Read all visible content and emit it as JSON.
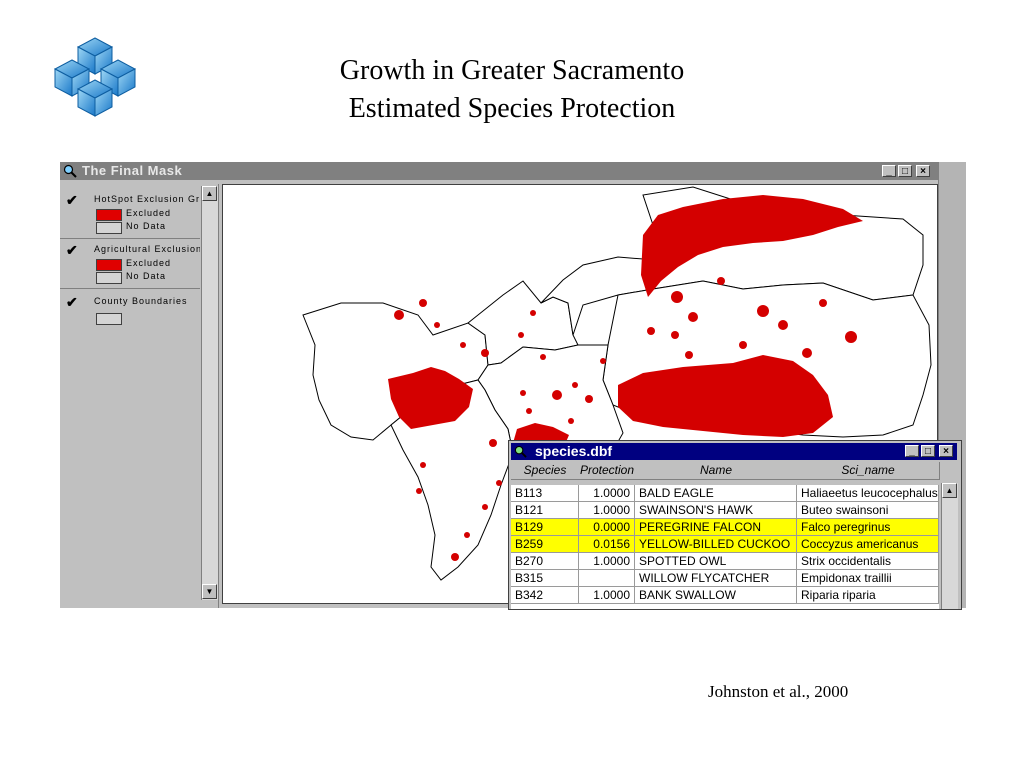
{
  "slide": {
    "title_line1": "Growth in Greater Sacramento",
    "title_line2": "Estimated Species Protection",
    "citation": "Johnston et al., 2000"
  },
  "main_window": {
    "title": "The Final Mask",
    "minimize_glyph": "_",
    "maximize_glyph": "□",
    "close_glyph": "×"
  },
  "legend": {
    "themes": [
      {
        "name": "HotSpot Exclusion Grid",
        "checked": "✔",
        "entries": [
          {
            "label": "Excluded",
            "color": "#e00000"
          },
          {
            "label": "No Data",
            "color": "#d4d4d4"
          }
        ]
      },
      {
        "name": "Agricultural Exclusion",
        "checked": "✔",
        "entries": [
          {
            "label": "Excluded",
            "color": "#e00000"
          },
          {
            "label": "No Data",
            "color": "#d4d4d4"
          }
        ]
      },
      {
        "name": "County Boundaries",
        "checked": "✔",
        "entries": [
          {
            "label": "",
            "color": "#d4d4d4"
          }
        ]
      }
    ]
  },
  "map": {
    "exclusion_color": "#d40000",
    "boundary_color": "#000000"
  },
  "dbf_window": {
    "title": "species.dbf",
    "minimize_glyph": "_",
    "maximize_glyph": "□",
    "close_glyph": "×",
    "columns": [
      "Species",
      "Protection",
      "Name",
      "Sci_name"
    ],
    "rows": [
      {
        "species": "B113",
        "protection": "1.0000",
        "name": "BALD EAGLE",
        "sci_name": "Haliaeetus leucocephalus",
        "highlight": false
      },
      {
        "species": "B121",
        "protection": "1.0000",
        "name": "SWAINSON'S HAWK",
        "sci_name": "Buteo swainsoni",
        "highlight": false
      },
      {
        "species": "B129",
        "protection": "0.0000",
        "name": "PEREGRINE FALCON",
        "sci_name": "Falco peregrinus",
        "highlight": true
      },
      {
        "species": "B259",
        "protection": "0.0156",
        "name": "YELLOW-BILLED CUCKOO",
        "sci_name": "Coccyzus americanus",
        "highlight": true
      },
      {
        "species": "B270",
        "protection": "1.0000",
        "name": "SPOTTED OWL",
        "sci_name": "Strix occidentalis",
        "highlight": false
      },
      {
        "species": "B315",
        "protection": "",
        "name": "WILLOW FLYCATCHER",
        "sci_name": "Empidonax traillii",
        "highlight": false
      },
      {
        "species": "B342",
        "protection": "1.0000",
        "name": "BANK SWALLOW",
        "sci_name": "Riparia riparia",
        "highlight": false
      }
    ],
    "highlight_color": "#ffff00"
  }
}
